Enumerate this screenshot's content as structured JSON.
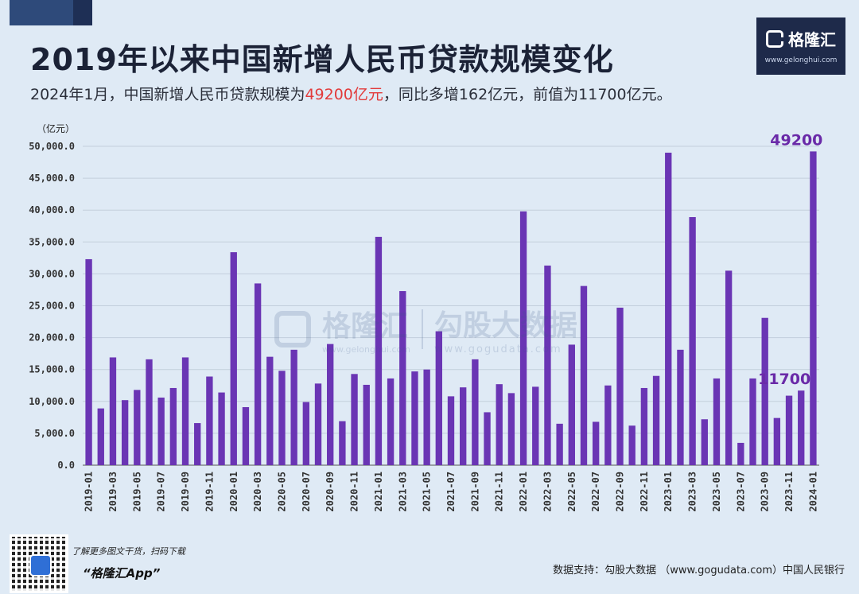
{
  "title": "2019年以来中国新增人民币贷款规模变化",
  "subtitle": {
    "prefix": "2024年1月，中国新增人民币贷款规模为",
    "highlight": "49200亿元",
    "suffix": "，同比多增162亿元，前值为11700亿元。"
  },
  "logo": {
    "name": "格隆汇",
    "url": "www.gelonghui.com"
  },
  "watermark": {
    "brand": "格隆汇",
    "brand_url": "www.gelonghui.com",
    "data_brand": "勾股大数据",
    "data_url": "www.gogudata.com"
  },
  "footer": {
    "download_tip": "了解更多图文干货，扫码下载",
    "app_name": "“格隆汇App”",
    "source": "数据支持：勾股大数据 （www.gogudata.com）中国人民银行"
  },
  "chart_data": {
    "type": "bar",
    "ylabel": "（亿元）",
    "ylim": [
      0,
      50000
    ],
    "yticks": [
      "0.0",
      "5,000.0",
      "10,000.0",
      "15,000.0",
      "20,000.0",
      "25,000.0",
      "30,000.0",
      "35,000.0",
      "40,000.0",
      "45,000.0",
      "50,000.0"
    ],
    "bar_color": "#6a35b4",
    "label_color": "#6a2aa8",
    "grid": true,
    "categories": [
      "2019-01",
      "2019-02",
      "2019-03",
      "2019-04",
      "2019-05",
      "2019-06",
      "2019-07",
      "2019-08",
      "2019-09",
      "2019-10",
      "2019-11",
      "2019-12",
      "2020-01",
      "2020-02",
      "2020-03",
      "2020-04",
      "2020-05",
      "2020-06",
      "2020-07",
      "2020-08",
      "2020-09",
      "2020-10",
      "2020-11",
      "2020-12",
      "2021-01",
      "2021-02",
      "2021-03",
      "2021-04",
      "2021-05",
      "2021-06",
      "2021-07",
      "2021-08",
      "2021-09",
      "2021-10",
      "2021-11",
      "2021-12",
      "2022-01",
      "2022-02",
      "2022-03",
      "2022-04",
      "2022-05",
      "2022-06",
      "2022-07",
      "2022-08",
      "2022-09",
      "2022-10",
      "2022-11",
      "2022-12",
      "2023-01",
      "2023-02",
      "2023-03",
      "2023-04",
      "2023-05",
      "2023-06",
      "2023-07",
      "2023-08",
      "2023-09",
      "2023-10",
      "2023-11",
      "2023-12",
      "2024-01"
    ],
    "values": [
      32300,
      8900,
      16900,
      10200,
      11800,
      16600,
      10600,
      12100,
      16900,
      6600,
      13900,
      11400,
      33400,
      9100,
      28500,
      17000,
      14800,
      18100,
      9900,
      12800,
      19000,
      6900,
      14300,
      12600,
      35800,
      13600,
      27300,
      14700,
      15000,
      21000,
      10800,
      12200,
      16600,
      8300,
      12700,
      11300,
      39800,
      12300,
      31300,
      6500,
      18900,
      28100,
      6800,
      12500,
      24700,
      6200,
      12100,
      14000,
      49000,
      18100,
      38900,
      7200,
      13600,
      30500,
      3500,
      13600,
      23100,
      7400,
      10900,
      11700,
      49200
    ],
    "xtick_labels": [
      "2019-01",
      "2019-03",
      "2019-05",
      "2019-07",
      "2019-09",
      "2019-11",
      "2020-01",
      "2020-03",
      "2020-05",
      "2020-07",
      "2020-09",
      "2020-11",
      "2021-01",
      "2021-03",
      "2021-05",
      "2021-07",
      "2021-09",
      "2021-11",
      "2022-01",
      "2022-03",
      "2022-05",
      "2022-07",
      "2022-09",
      "2022-11",
      "2023-01",
      "2023-03",
      "2023-05",
      "2023-07",
      "2023-09",
      "2023-11",
      "2024-01"
    ],
    "annotations": [
      {
        "text": "49200",
        "category": "2024-01",
        "value": 49200
      },
      {
        "text": "11700",
        "category": "2023-12",
        "value": 11700
      }
    ]
  }
}
